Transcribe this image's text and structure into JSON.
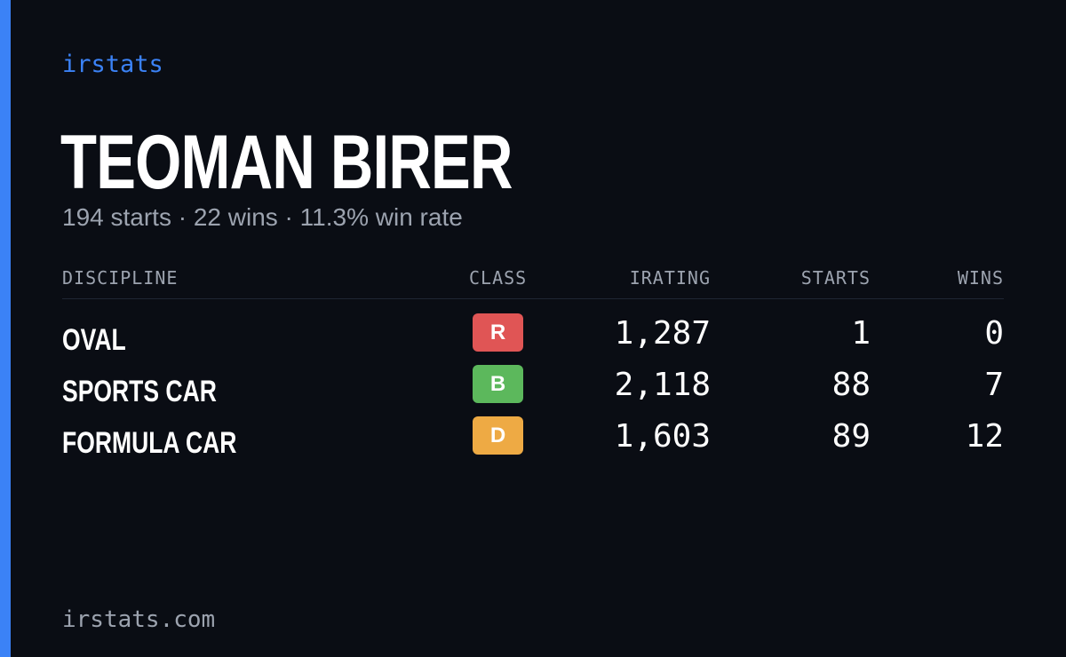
{
  "brand": "irstats",
  "player": {
    "name": "TEOMAN BIRER",
    "summary": "194 starts · 22 wins · 11.3% win rate"
  },
  "table": {
    "headers": {
      "discipline": "DISCIPLINE",
      "class": "CLASS",
      "irating": "IRATING",
      "starts": "STARTS",
      "wins": "WINS"
    },
    "rows": [
      {
        "discipline": "OVAL",
        "class": "R",
        "class_color": "#e05555",
        "irating": "1,287",
        "starts": "1",
        "wins": "0"
      },
      {
        "discipline": "SPORTS CAR",
        "class": "B",
        "class_color": "#5cb85c",
        "irating": "2,118",
        "starts": "88",
        "wins": "7"
      },
      {
        "discipline": "FORMULA CAR",
        "class": "D",
        "class_color": "#eeaa44",
        "irating": "1,603",
        "starts": "89",
        "wins": "12"
      }
    ]
  },
  "footer": "irstats.com",
  "colors": {
    "accent": "#3b82f6",
    "background": "#0a0d14",
    "muted": "#9ca3af"
  }
}
